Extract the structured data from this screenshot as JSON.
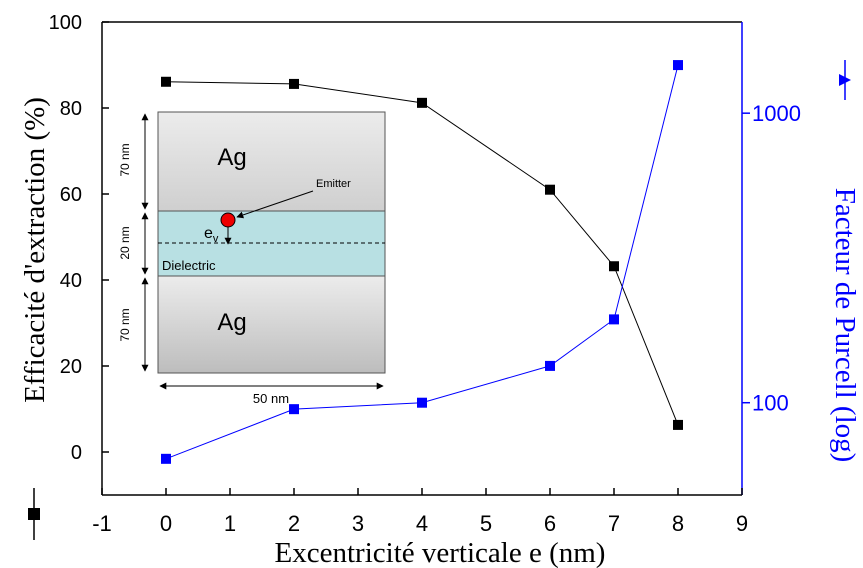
{
  "chart_data": {
    "type": "line",
    "x_label": "Excentricité verticale e (nm)",
    "y_label": "Efficacité d'extraction (%)",
    "y2_label": "Facteur de Purcell (log)",
    "xlim": [
      -1,
      9
    ],
    "xticks": [
      -1,
      0,
      1,
      2,
      3,
      4,
      5,
      6,
      7,
      8,
      9
    ],
    "ylim": [
      -10,
      100
    ],
    "yticks": [
      0,
      20,
      40,
      60,
      80,
      100
    ],
    "y2lim": [
      48,
      2065
    ],
    "y2ticks": [
      100,
      1000
    ],
    "y2_log": true,
    "series": [
      {
        "color": "#000000",
        "marker": "square",
        "x": [
          0,
          2,
          4,
          6,
          7,
          8
        ],
        "values": [
          86.1,
          85.6,
          81.2,
          61,
          43.2,
          6.3
        ]
      },
      {
        "color": "#0000ff",
        "marker": "square",
        "axis": "y2",
        "x": [
          0,
          2,
          4,
          6,
          7,
          8
        ],
        "values": [
          64,
          95,
          100,
          134,
          194,
          1466
        ]
      }
    ],
    "inset": {
      "top_layer": "Ag",
      "bottom_layer": "Ag",
      "middle_layer": "Dielectric",
      "emitter": "Emitter",
      "dipole": "e",
      "dipole_subscript": "v",
      "top_thickness": "70 nm",
      "middle_thickness": "20 nm",
      "bottom_thickness": "70 nm",
      "width": "50 nm"
    }
  }
}
